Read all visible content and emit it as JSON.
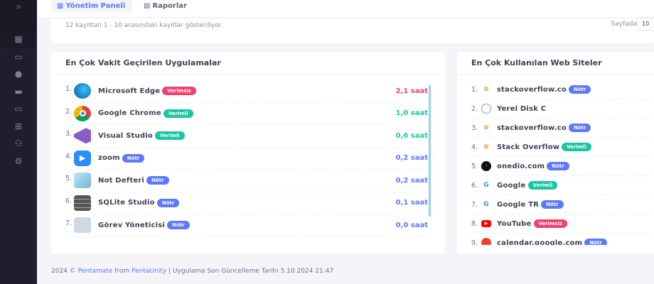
{
  "sidebar": {
    "icons": [
      "chevrons-right-icon",
      "grid-icon",
      "id-card-icon",
      "user-icon",
      "calendar-icon",
      "monitor-icon",
      "network-icon",
      "users-icon",
      "gear-icon"
    ]
  },
  "topbar": {
    "tabs": [
      {
        "label": "Yönetim Paneli",
        "icon": "grid-icon"
      },
      {
        "label": "Raporlar",
        "icon": "calculator-icon"
      }
    ]
  },
  "info": {
    "records_text": "12 kayıttan 1 - 10 arasındaki kayıtlar gösteriliyor",
    "per_page_label": "Sayfada",
    "per_page_value": "10"
  },
  "colors": {
    "verimsiz": "#f1416c",
    "verimli": "#1bc5a0",
    "notr": "#5d78ff",
    "accent": "#5d78ff"
  },
  "apps": {
    "title": "En Çok Vakit Geçirilen Uygulamalar",
    "items": [
      {
        "num": "1.",
        "name": "Microsoft Edge",
        "badge": "Verimsiz",
        "type": "verimsiz",
        "time": "2,1 saat",
        "icon": "edge-icon"
      },
      {
        "num": "2.",
        "name": "Google Chrome",
        "badge": "Verimli",
        "type": "verimli",
        "time": "1,0 saat",
        "icon": "chrome-icon"
      },
      {
        "num": "3.",
        "name": "Visual Studio",
        "badge": "Verimli",
        "type": "verimli",
        "time": "0,6 saat",
        "icon": "visual-studio-icon"
      },
      {
        "num": "4.",
        "name": "zoom",
        "badge": "Nötr",
        "type": "notr",
        "time": "0,2 saat",
        "icon": "zoom-icon"
      },
      {
        "num": "5.",
        "name": "Not Defteri",
        "badge": "Nötr",
        "type": "notr",
        "time": "0,2 saat",
        "icon": "notepad-icon"
      },
      {
        "num": "6.",
        "name": "SQLite Studio",
        "badge": "Nötr",
        "type": "notr",
        "time": "0,1 saat",
        "icon": "database-icon"
      },
      {
        "num": "7.",
        "name": "Görev Yöneticisi",
        "badge": "Nötr",
        "type": "notr",
        "time": "0,0 saat",
        "icon": "task-manager-icon"
      }
    ]
  },
  "sites": {
    "title": "En Çok Kullanılan Web Siteler",
    "items": [
      {
        "num": "1.",
        "name": "stackoverflow.co",
        "badge": "Nötr",
        "type": "notr",
        "icon": "stackoverflow-icon"
      },
      {
        "num": "2.",
        "name": "Yerel Disk C",
        "badge": "",
        "type": "",
        "icon": "globe-icon"
      },
      {
        "num": "3.",
        "name": "stackoverflow.co",
        "badge": "Nötr",
        "type": "notr",
        "icon": "stackoverflow-icon"
      },
      {
        "num": "4.",
        "name": "Stack Overflow",
        "badge": "Verimli",
        "type": "verimli",
        "icon": "stackoverflow-icon"
      },
      {
        "num": "5.",
        "name": "onedio.com",
        "badge": "Nötr",
        "type": "notr",
        "icon": "onedio-icon"
      },
      {
        "num": "6.",
        "name": "Google",
        "badge": "Verimli",
        "type": "verimli",
        "icon": "google-icon"
      },
      {
        "num": "7.",
        "name": "Google TR",
        "badge": "Nötr",
        "type": "notr",
        "icon": "google-icon"
      },
      {
        "num": "8.",
        "name": "YouTube",
        "badge": "Verimsiz",
        "type": "verimsiz",
        "icon": "youtube-icon"
      },
      {
        "num": "9.",
        "name": "calendar.google.com",
        "badge": "Nötr",
        "type": "notr",
        "icon": "google-calendar-icon"
      }
    ]
  },
  "footer": {
    "year": "2024 ©",
    "brand": "Pentamate",
    "from": "from",
    "company": "PentaUnity",
    "separator": "|",
    "updated": "Uygulama Son Güncelleme Tarihi 5.10.2024 21:47"
  }
}
